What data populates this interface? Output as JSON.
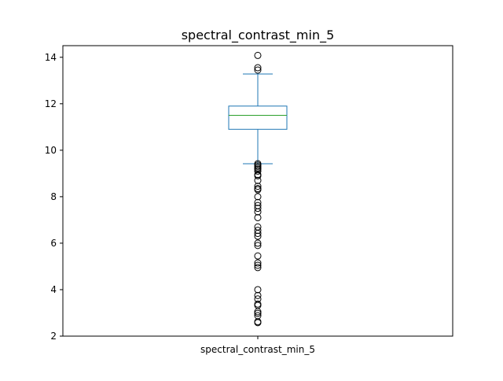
{
  "chart_data": {
    "type": "box",
    "title": "spectral_contrast_min_5",
    "xlabel": "",
    "ylabel": "",
    "categories": [
      "spectral_contrast_min_5"
    ],
    "ylim": [
      2,
      14.5
    ],
    "yticks": [
      2,
      4,
      6,
      8,
      10,
      12,
      14
    ],
    "grid": false,
    "box": {
      "whisker_low": 9.42,
      "q1": 10.9,
      "median": 11.5,
      "q3": 11.9,
      "whisker_high": 13.28
    },
    "outliers": [
      14.08,
      13.55,
      13.45,
      9.42,
      9.36,
      9.3,
      9.24,
      9.18,
      9.1,
      8.95,
      8.9,
      8.7,
      8.45,
      8.35,
      8.3,
      8.0,
      7.75,
      7.62,
      7.5,
      7.35,
      7.1,
      6.7,
      6.55,
      6.42,
      6.3,
      6.0,
      5.9,
      5.45,
      5.15,
      5.05,
      4.95,
      4.0,
      3.75,
      3.6,
      3.38,
      3.32,
      3.05,
      2.98,
      2.88,
      2.62,
      2.58
    ],
    "colors": {
      "box": "#1f77b4",
      "median": "#2ca02c",
      "outlier": "#000000"
    }
  }
}
